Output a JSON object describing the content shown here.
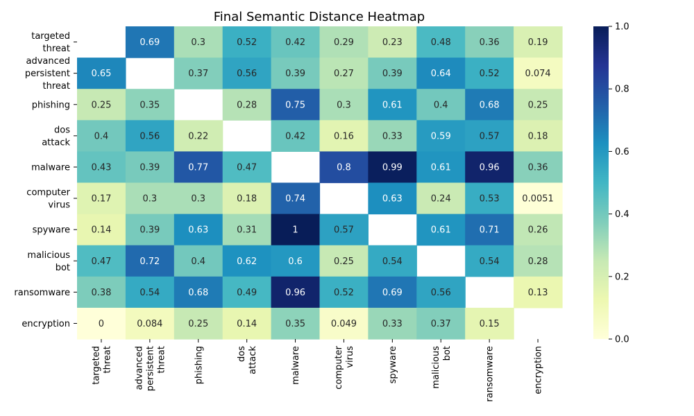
{
  "chart_data": {
    "type": "heatmap",
    "title": "Final Semantic Distance Heatmap",
    "xlabel": "",
    "ylabel": "",
    "colormap": "YlGnBu",
    "vmin": 0,
    "vmax": 1,
    "colorbar_ticks": [
      "0.0",
      "0.2",
      "0.4",
      "0.6",
      "0.8",
      "1.0"
    ],
    "row_labels": [
      [
        "targeted",
        "threat"
      ],
      [
        "advanced",
        "persistent",
        "threat"
      ],
      [
        "phishing"
      ],
      [
        "dos",
        "attack"
      ],
      [
        "malware"
      ],
      [
        "computer",
        "virus"
      ],
      [
        "spyware"
      ],
      [
        "malicious",
        "bot"
      ],
      [
        "ransomware"
      ],
      [
        "encryption"
      ]
    ],
    "col_labels": [
      [
        "targeted",
        "threat"
      ],
      [
        "advanced",
        "persistent",
        "threat"
      ],
      [
        "phishing"
      ],
      [
        "dos",
        "attack"
      ],
      [
        "malware"
      ],
      [
        "computer",
        "virus"
      ],
      [
        "spyware"
      ],
      [
        "malicious",
        "bot"
      ],
      [
        "ransomware"
      ],
      [
        "encryption"
      ]
    ],
    "values": [
      [
        null,
        0.69,
        0.3,
        0.52,
        0.42,
        0.29,
        0.23,
        0.48,
        0.36,
        0.19
      ],
      [
        0.65,
        null,
        0.37,
        0.56,
        0.39,
        0.27,
        0.39,
        0.64,
        0.52,
        0.074
      ],
      [
        0.25,
        0.35,
        null,
        0.28,
        0.75,
        0.3,
        0.61,
        0.4,
        0.68,
        0.25
      ],
      [
        0.4,
        0.56,
        0.22,
        null,
        0.42,
        0.16,
        0.33,
        0.59,
        0.57,
        0.18
      ],
      [
        0.43,
        0.39,
        0.77,
        0.47,
        null,
        0.8,
        0.99,
        0.61,
        0.96,
        0.36
      ],
      [
        0.17,
        0.3,
        0.3,
        0.18,
        0.74,
        null,
        0.63,
        0.24,
        0.53,
        0.0051
      ],
      [
        0.14,
        0.39,
        0.63,
        0.31,
        1,
        0.57,
        null,
        0.61,
        0.71,
        0.26
      ],
      [
        0.47,
        0.72,
        0.4,
        0.62,
        0.6,
        0.25,
        0.54,
        null,
        0.54,
        0.28
      ],
      [
        0.38,
        0.54,
        0.68,
        0.49,
        0.96,
        0.52,
        0.69,
        0.56,
        null,
        0.13
      ],
      [
        0,
        0.084,
        0.25,
        0.14,
        0.35,
        0.049,
        0.33,
        0.37,
        0.15,
        null
      ]
    ]
  }
}
